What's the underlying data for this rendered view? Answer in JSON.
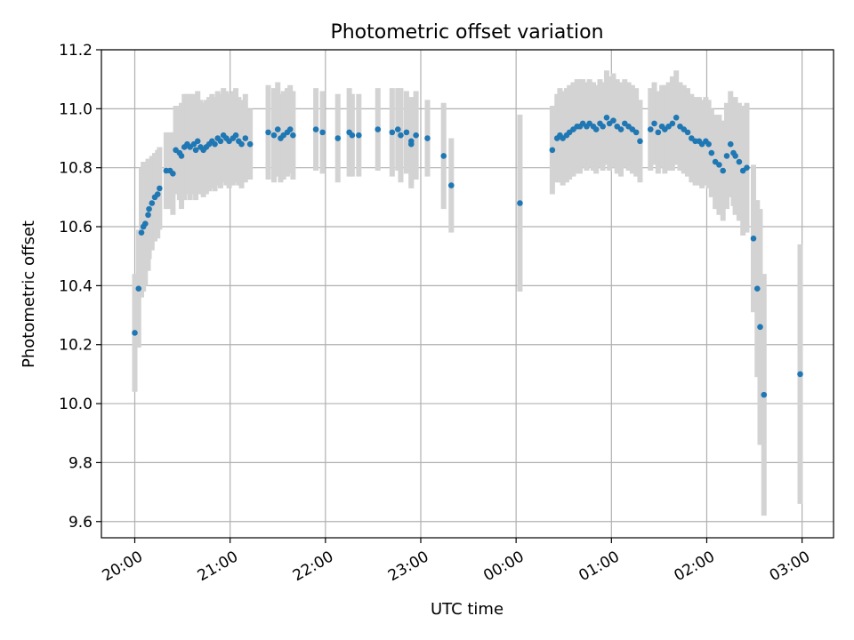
{
  "chart_data": {
    "type": "scatter",
    "title": "Photometric offset variation",
    "xlabel": "UTC time",
    "ylabel": "Photometric offset",
    "xlim_hours": [
      19.65,
      27.33
    ],
    "ylim": [
      9.545,
      11.2
    ],
    "grid": true,
    "x_ticks": [
      {
        "h": 20,
        "label": "20:00"
      },
      {
        "h": 21,
        "label": "21:00"
      },
      {
        "h": 22,
        "label": "22:00"
      },
      {
        "h": 23,
        "label": "23:00"
      },
      {
        "h": 24,
        "label": "00:00"
      },
      {
        "h": 25,
        "label": "01:00"
      },
      {
        "h": 26,
        "label": "02:00"
      },
      {
        "h": 27,
        "label": "03:00"
      }
    ],
    "y_ticks": [
      {
        "v": 9.6,
        "label": "9.6"
      },
      {
        "v": 9.8,
        "label": "9.8"
      },
      {
        "v": 10.0,
        "label": "10.0"
      },
      {
        "v": 10.2,
        "label": "10.2"
      },
      {
        "v": 10.4,
        "label": "10.4"
      },
      {
        "v": 10.6,
        "label": "10.6"
      },
      {
        "v": 10.8,
        "label": "10.8"
      },
      {
        "v": 11.0,
        "label": "11.0"
      },
      {
        "v": 11.2,
        "label": "11.2"
      }
    ],
    "point_color": "#1f77b4",
    "errorbar_color": "#d3d3d3",
    "points": [
      {
        "x": 20.0,
        "y": 10.24,
        "e": 0.2
      },
      {
        "x": 20.04,
        "y": 10.39,
        "e": 0.2
      },
      {
        "x": 20.07,
        "y": 10.58,
        "e": 0.22
      },
      {
        "x": 20.09,
        "y": 10.6,
        "e": 0.22
      },
      {
        "x": 20.11,
        "y": 10.61,
        "e": 0.21
      },
      {
        "x": 20.14,
        "y": 10.64,
        "e": 0.19
      },
      {
        "x": 20.15,
        "y": 10.66,
        "e": 0.17
      },
      {
        "x": 20.18,
        "y": 10.68,
        "e": 0.16
      },
      {
        "x": 20.21,
        "y": 10.7,
        "e": 0.15
      },
      {
        "x": 20.24,
        "y": 10.71,
        "e": 0.15
      },
      {
        "x": 20.26,
        "y": 10.73,
        "e": 0.14
      },
      {
        "x": 20.33,
        "y": 10.79,
        "e": 0.13
      },
      {
        "x": 20.37,
        "y": 10.79,
        "e": 0.13
      },
      {
        "x": 20.4,
        "y": 10.78,
        "e": 0.14
      },
      {
        "x": 20.43,
        "y": 10.86,
        "e": 0.15
      },
      {
        "x": 20.47,
        "y": 10.85,
        "e": 0.16
      },
      {
        "x": 20.49,
        "y": 10.84,
        "e": 0.18
      },
      {
        "x": 20.52,
        "y": 10.87,
        "e": 0.18
      },
      {
        "x": 20.55,
        "y": 10.88,
        "e": 0.17
      },
      {
        "x": 20.58,
        "y": 10.87,
        "e": 0.18
      },
      {
        "x": 20.62,
        "y": 10.88,
        "e": 0.17
      },
      {
        "x": 20.64,
        "y": 10.86,
        "e": 0.17
      },
      {
        "x": 20.66,
        "y": 10.89,
        "e": 0.17
      },
      {
        "x": 20.69,
        "y": 10.87,
        "e": 0.16
      },
      {
        "x": 20.72,
        "y": 10.86,
        "e": 0.16
      },
      {
        "x": 20.75,
        "y": 10.87,
        "e": 0.16
      },
      {
        "x": 20.78,
        "y": 10.88,
        "e": 0.16
      },
      {
        "x": 20.81,
        "y": 10.89,
        "e": 0.16
      },
      {
        "x": 20.84,
        "y": 10.88,
        "e": 0.16
      },
      {
        "x": 20.87,
        "y": 10.9,
        "e": 0.16
      },
      {
        "x": 20.9,
        "y": 10.89,
        "e": 0.16
      },
      {
        "x": 20.93,
        "y": 10.91,
        "e": 0.16
      },
      {
        "x": 20.96,
        "y": 10.9,
        "e": 0.16
      },
      {
        "x": 20.99,
        "y": 10.89,
        "e": 0.16
      },
      {
        "x": 21.03,
        "y": 10.9,
        "e": 0.16
      },
      {
        "x": 21.06,
        "y": 10.91,
        "e": 0.16
      },
      {
        "x": 21.09,
        "y": 10.89,
        "e": 0.15
      },
      {
        "x": 21.12,
        "y": 10.88,
        "e": 0.15
      },
      {
        "x": 21.16,
        "y": 10.9,
        "e": 0.15
      },
      {
        "x": 21.21,
        "y": 10.88,
        "e": 0.12
      },
      {
        "x": 21.4,
        "y": 10.92,
        "e": 0.16
      },
      {
        "x": 21.46,
        "y": 10.91,
        "e": 0.16
      },
      {
        "x": 21.5,
        "y": 10.93,
        "e": 0.16
      },
      {
        "x": 21.53,
        "y": 10.9,
        "e": 0.15
      },
      {
        "x": 21.56,
        "y": 10.91,
        "e": 0.15
      },
      {
        "x": 21.6,
        "y": 10.92,
        "e": 0.15
      },
      {
        "x": 21.63,
        "y": 10.93,
        "e": 0.15
      },
      {
        "x": 21.66,
        "y": 10.91,
        "e": 0.15
      },
      {
        "x": 21.9,
        "y": 10.93,
        "e": 0.14
      },
      {
        "x": 21.97,
        "y": 10.92,
        "e": 0.14
      },
      {
        "x": 22.13,
        "y": 10.9,
        "e": 0.15
      },
      {
        "x": 22.25,
        "y": 10.92,
        "e": 0.15
      },
      {
        "x": 22.28,
        "y": 10.91,
        "e": 0.14
      },
      {
        "x": 22.35,
        "y": 10.91,
        "e": 0.14
      },
      {
        "x": 22.55,
        "y": 10.93,
        "e": 0.14
      },
      {
        "x": 22.7,
        "y": 10.92,
        "e": 0.15
      },
      {
        "x": 22.76,
        "y": 10.93,
        "e": 0.14
      },
      {
        "x": 22.79,
        "y": 10.91,
        "e": 0.16
      },
      {
        "x": 22.85,
        "y": 10.92,
        "e": 0.14
      },
      {
        "x": 22.9,
        "y": 10.89,
        "e": 0.15
      },
      {
        "x": 22.95,
        "y": 10.91,
        "e": 0.15
      },
      {
        "x": 22.9,
        "y": 10.88,
        "e": 0.15
      },
      {
        "x": 23.07,
        "y": 10.9,
        "e": 0.13
      },
      {
        "x": 23.24,
        "y": 10.84,
        "e": 0.18
      },
      {
        "x": 23.32,
        "y": 10.74,
        "e": 0.16
      },
      {
        "x": 24.04,
        "y": 10.68,
        "e": 0.3
      },
      {
        "x": 24.38,
        "y": 10.86,
        "e": 0.15
      },
      {
        "x": 24.43,
        "y": 10.9,
        "e": 0.15
      },
      {
        "x": 24.46,
        "y": 10.91,
        "e": 0.16
      },
      {
        "x": 24.49,
        "y": 10.9,
        "e": 0.16
      },
      {
        "x": 24.53,
        "y": 10.91,
        "e": 0.16
      },
      {
        "x": 24.56,
        "y": 10.92,
        "e": 0.16
      },
      {
        "x": 24.6,
        "y": 10.93,
        "e": 0.16
      },
      {
        "x": 24.64,
        "y": 10.94,
        "e": 0.16
      },
      {
        "x": 24.67,
        "y": 10.94,
        "e": 0.16
      },
      {
        "x": 24.7,
        "y": 10.95,
        "e": 0.15
      },
      {
        "x": 24.74,
        "y": 10.94,
        "e": 0.15
      },
      {
        "x": 24.77,
        "y": 10.95,
        "e": 0.15
      },
      {
        "x": 24.81,
        "y": 10.94,
        "e": 0.15
      },
      {
        "x": 24.84,
        "y": 10.93,
        "e": 0.15
      },
      {
        "x": 24.88,
        "y": 10.95,
        "e": 0.15
      },
      {
        "x": 24.91,
        "y": 10.94,
        "e": 0.15
      },
      {
        "x": 24.95,
        "y": 10.97,
        "e": 0.16
      },
      {
        "x": 24.98,
        "y": 10.95,
        "e": 0.16
      },
      {
        "x": 25.02,
        "y": 10.96,
        "e": 0.16
      },
      {
        "x": 25.06,
        "y": 10.94,
        "e": 0.16
      },
      {
        "x": 25.1,
        "y": 10.93,
        "e": 0.16
      },
      {
        "x": 25.14,
        "y": 10.95,
        "e": 0.15
      },
      {
        "x": 25.18,
        "y": 10.94,
        "e": 0.15
      },
      {
        "x": 25.22,
        "y": 10.93,
        "e": 0.15
      },
      {
        "x": 25.26,
        "y": 10.92,
        "e": 0.15
      },
      {
        "x": 25.3,
        "y": 10.89,
        "e": 0.14
      },
      {
        "x": 25.41,
        "y": 10.93,
        "e": 0.14
      },
      {
        "x": 25.45,
        "y": 10.95,
        "e": 0.14
      },
      {
        "x": 25.49,
        "y": 10.92,
        "e": 0.14
      },
      {
        "x": 25.53,
        "y": 10.94,
        "e": 0.14
      },
      {
        "x": 25.56,
        "y": 10.93,
        "e": 0.15
      },
      {
        "x": 25.6,
        "y": 10.94,
        "e": 0.15
      },
      {
        "x": 25.64,
        "y": 10.95,
        "e": 0.16
      },
      {
        "x": 25.68,
        "y": 10.97,
        "e": 0.16
      },
      {
        "x": 25.72,
        "y": 10.94,
        "e": 0.15
      },
      {
        "x": 25.76,
        "y": 10.93,
        "e": 0.15
      },
      {
        "x": 25.8,
        "y": 10.92,
        "e": 0.15
      },
      {
        "x": 25.84,
        "y": 10.9,
        "e": 0.15
      },
      {
        "x": 25.88,
        "y": 10.89,
        "e": 0.15
      },
      {
        "x": 25.92,
        "y": 10.89,
        "e": 0.15
      },
      {
        "x": 25.95,
        "y": 10.88,
        "e": 0.15
      },
      {
        "x": 25.99,
        "y": 10.89,
        "e": 0.15
      },
      {
        "x": 26.02,
        "y": 10.88,
        "e": 0.15
      },
      {
        "x": 26.05,
        "y": 10.85,
        "e": 0.15
      },
      {
        "x": 26.09,
        "y": 10.82,
        "e": 0.16
      },
      {
        "x": 26.13,
        "y": 10.81,
        "e": 0.17
      },
      {
        "x": 26.17,
        "y": 10.79,
        "e": 0.17
      },
      {
        "x": 26.21,
        "y": 10.84,
        "e": 0.18
      },
      {
        "x": 26.25,
        "y": 10.88,
        "e": 0.18
      },
      {
        "x": 26.28,
        "y": 10.85,
        "e": 0.18
      },
      {
        "x": 26.3,
        "y": 10.84,
        "e": 0.2
      },
      {
        "x": 26.34,
        "y": 10.82,
        "e": 0.2
      },
      {
        "x": 26.38,
        "y": 10.79,
        "e": 0.22
      },
      {
        "x": 26.42,
        "y": 10.8,
        "e": 0.22
      },
      {
        "x": 26.49,
        "y": 10.56,
        "e": 0.25
      },
      {
        "x": 26.53,
        "y": 10.39,
        "e": 0.3
      },
      {
        "x": 26.56,
        "y": 10.26,
        "e": 0.4
      },
      {
        "x": 26.6,
        "y": 10.03,
        "e": 0.41
      },
      {
        "x": 26.98,
        "y": 10.1,
        "e": 0.44
      }
    ]
  }
}
